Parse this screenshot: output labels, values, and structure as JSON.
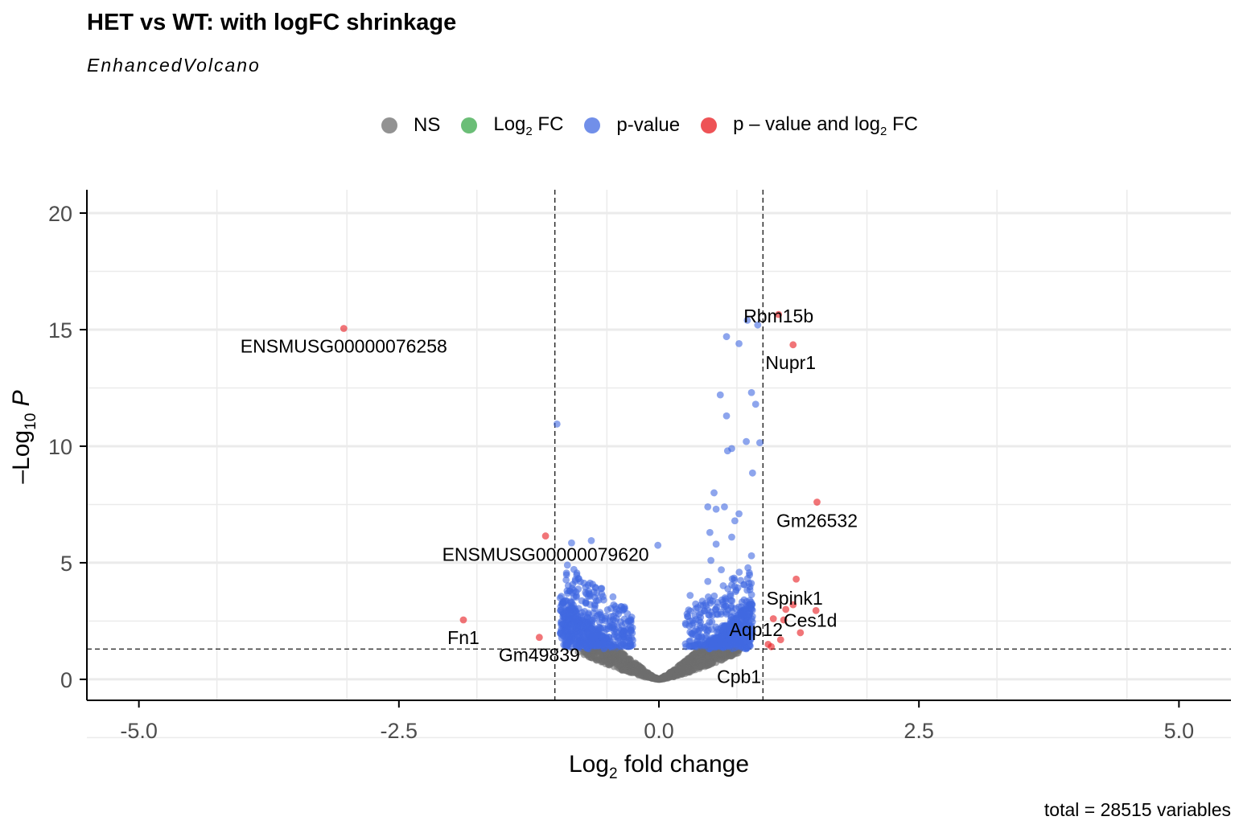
{
  "title": "HET vs WT: with logFC shrinkage",
  "subtitle": "EnhancedVolcano",
  "caption": "total = 28515 variables",
  "colors": {
    "ns": "#6e6e6e",
    "log2fc": "#3aa84a",
    "pvalue": "#4169e1",
    "both": "#e8191e",
    "grid": "#ebebeb",
    "axis": "#000000"
  },
  "legend": [
    {
      "key": "ns",
      "label": "NS",
      "sub": "",
      "tail": ""
    },
    {
      "key": "log2fc",
      "label": "Log",
      "sub": "2",
      "tail": " FC"
    },
    {
      "key": "pvalue",
      "label": "p-value",
      "sub": "",
      "tail": ""
    },
    {
      "key": "both",
      "label": "p – value and log",
      "sub": "2",
      "tail": " FC"
    }
  ],
  "chart_data": {
    "type": "scatter",
    "xlabel": {
      "text": "Log",
      "sub": "2",
      "tail": " fold change"
    },
    "ylabel": {
      "text": "–Log",
      "sub": "10",
      "tail": " P"
    },
    "xlim": [
      -5.5,
      5.5
    ],
    "ylim": [
      -0.9,
      21
    ],
    "xticks": [
      -5.0,
      -2.5,
      0.0,
      2.5,
      5.0
    ],
    "xtick_labels": [
      "-5.0",
      "-2.5",
      "0.0",
      "2.5",
      "5.0"
    ],
    "yticks": [
      0,
      5,
      10,
      15,
      20
    ],
    "ytick_labels": [
      "0",
      "5",
      "10",
      "15",
      "20"
    ],
    "fc_cutoff": [
      -1.0,
      1.0
    ],
    "p_cutoff": 1.3,
    "significant": [
      {
        "label": "ENSMUSG00000076258",
        "x": -3.03,
        "y": 15.05
      },
      {
        "label": "Rbm15b",
        "x": 1.15,
        "y": 15.65
      },
      {
        "label": "Nupr1",
        "x": 1.29,
        "y": 14.35
      },
      {
        "label": "Gm26532",
        "x": 1.52,
        "y": 7.6
      },
      {
        "label": "ENSMUSG00000079620",
        "x": -1.09,
        "y": 6.15
      },
      {
        "label": "Spink1",
        "x": 1.32,
        "y": 4.3
      },
      {
        "label": "Ces1d",
        "x": 1.51,
        "y": 2.95
      },
      {
        "label": "Fn1",
        "x": -1.88,
        "y": 2.55
      },
      {
        "label": "Gm49839",
        "x": -1.15,
        "y": 1.8
      },
      {
        "label": "Aqp12",
        "x": 1.36,
        "y": 2.0
      },
      {
        "label": "Cpb1",
        "x": 1.08,
        "y": 1.4
      },
      {
        "label": "",
        "x": 1.29,
        "y": 3.2
      },
      {
        "label": "",
        "x": 1.22,
        "y": 3.0
      },
      {
        "label": "",
        "x": 1.1,
        "y": 2.6
      },
      {
        "label": "",
        "x": 1.2,
        "y": 2.55
      },
      {
        "label": "",
        "x": 1.17,
        "y": 1.7
      },
      {
        "label": "",
        "x": 1.05,
        "y": 1.5
      }
    ],
    "pvalue_only_highlights": [
      {
        "x": 0.85,
        "y": 15.4
      },
      {
        "x": 0.95,
        "y": 15.2
      },
      {
        "x": 0.65,
        "y": 14.7
      },
      {
        "x": 0.77,
        "y": 14.4
      },
      {
        "x": 0.59,
        "y": 12.2
      },
      {
        "x": 0.89,
        "y": 12.3
      },
      {
        "x": 0.93,
        "y": 11.8
      },
      {
        "x": 0.65,
        "y": 11.3
      },
      {
        "x": -0.98,
        "y": 10.95
      },
      {
        "x": 0.84,
        "y": 10.2
      },
      {
        "x": 0.97,
        "y": 10.15
      },
      {
        "x": 0.7,
        "y": 9.9
      },
      {
        "x": 0.66,
        "y": 9.8
      },
      {
        "x": 0.9,
        "y": 8.85
      },
      {
        "x": 0.53,
        "y": 8.0
      },
      {
        "x": 0.47,
        "y": 7.4
      },
      {
        "x": 0.55,
        "y": 7.3
      },
      {
        "x": 0.63,
        "y": 7.4
      },
      {
        "x": 0.77,
        "y": 7.1
      },
      {
        "x": 0.73,
        "y": 6.8
      },
      {
        "x": 0.49,
        "y": 6.3
      },
      {
        "x": 0.55,
        "y": 5.8
      },
      {
        "x": 0.7,
        "y": 6.1
      },
      {
        "x": -0.84,
        "y": 5.85
      },
      {
        "x": -0.65,
        "y": 5.95
      },
      {
        "x": -0.01,
        "y": 5.75
      },
      {
        "x": 0.5,
        "y": 5.1
      },
      {
        "x": 0.89,
        "y": 5.3
      },
      {
        "x": -0.88,
        "y": 4.9
      },
      {
        "x": 0.6,
        "y": 4.7
      },
      {
        "x": 0.47,
        "y": 4.2
      },
      {
        "x": 0.3,
        "y": 3.6
      }
    ],
    "cloud_rule": "|y| approx 2.3*|x|^1.2 + noise; blue if y > p_cutoff, grey otherwise"
  }
}
